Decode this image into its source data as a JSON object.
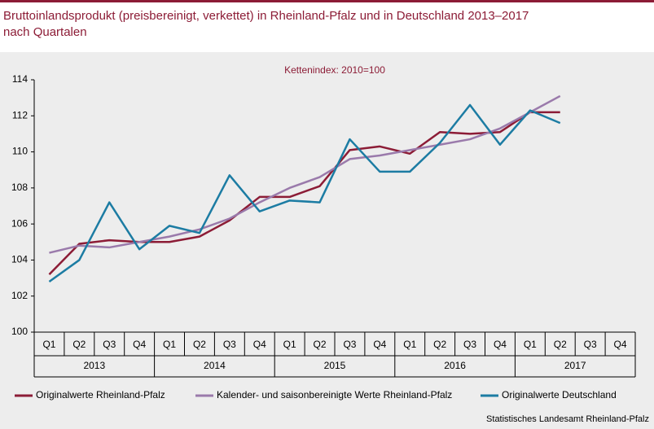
{
  "chart_data": {
    "type": "line",
    "title": [
      "Bruttoinlandsprodukt (preisbereinigt, verkettet) in Rheinland-Pfalz und in Deutschland 2013–2017",
      "nach Quartalen"
    ],
    "subtitle": "Kettenindex: 2010=100",
    "source": "Statistisches Landesamt Rheinland-Pfalz",
    "categories": [
      "Q1",
      "Q2",
      "Q3",
      "Q4",
      "Q1",
      "Q2",
      "Q3",
      "Q4",
      "Q1",
      "Q2",
      "Q3",
      "Q4",
      "Q1",
      "Q2",
      "Q3",
      "Q4",
      "Q1",
      "Q2",
      "Q3",
      "Q4"
    ],
    "groups": [
      "2013",
      "2014",
      "2015",
      "2016",
      "2017"
    ],
    "series": [
      {
        "name": "Originalwerte Rheinland-Pfalz",
        "color": "#8c1c36",
        "values": [
          103.2,
          104.9,
          105.1,
          105.0,
          105.0,
          105.3,
          106.2,
          107.5,
          107.5,
          108.1,
          110.1,
          110.3,
          109.9,
          111.1,
          111.0,
          111.1,
          112.2,
          112.2,
          null,
          null
        ]
      },
      {
        "name": "Kalender- und saisonbereinigte Werte Rheinland-Pfalz",
        "color": "#9a7aab",
        "values": [
          104.4,
          104.8,
          104.7,
          105.0,
          105.3,
          105.7,
          106.3,
          107.2,
          108.0,
          108.6,
          109.6,
          109.8,
          110.1,
          110.4,
          110.7,
          111.3,
          112.2,
          113.1,
          null,
          null
        ]
      },
      {
        "name": "Originalwerte Deutschland",
        "color": "#1c7ca3",
        "values": [
          102.8,
          104.0,
          107.2,
          104.6,
          105.9,
          105.5,
          108.7,
          106.7,
          107.3,
          107.2,
          110.7,
          108.9,
          108.9,
          110.5,
          112.6,
          110.4,
          112.3,
          111.6,
          null,
          null
        ]
      }
    ],
    "ylim": [
      100,
      114
    ],
    "yticks": [
      100,
      102,
      104,
      106,
      108,
      110,
      112,
      114
    ],
    "grid": false
  }
}
